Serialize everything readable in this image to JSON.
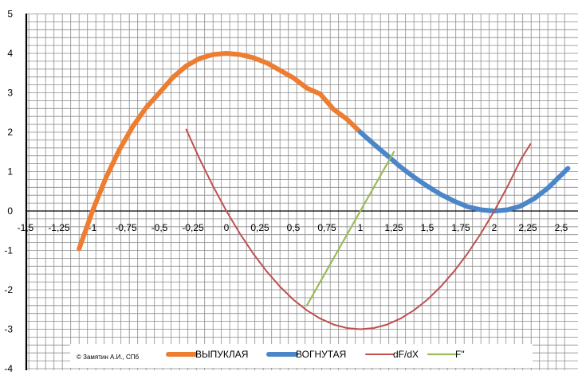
{
  "chart_data": {
    "type": "line",
    "title": "",
    "xlabel": "",
    "ylabel": "",
    "xlim": [
      -1.6,
      2.55
    ],
    "ylim": [
      -4,
      5
    ],
    "x_ticks": [
      {
        "value": -1.5,
        "label": "-1,5"
      },
      {
        "value": -1.25,
        "label": "-1,25"
      },
      {
        "value": -1,
        "label": "-1"
      },
      {
        "value": -0.75,
        "label": "-0,75"
      },
      {
        "value": -0.5,
        "label": "-0,5"
      },
      {
        "value": -0.25,
        "label": "-0,25"
      },
      {
        "value": 0,
        "label": "0"
      },
      {
        "value": 0.25,
        "label": "0,25"
      },
      {
        "value": 0.5,
        "label": "0,5"
      },
      {
        "value": 0.75,
        "label": "0,75"
      },
      {
        "value": 1,
        "label": "1"
      },
      {
        "value": 1.25,
        "label": "1,25"
      },
      {
        "value": 1.5,
        "label": "1,5"
      },
      {
        "value": 1.75,
        "label": "1,75"
      },
      {
        "value": 2,
        "label": "2"
      },
      {
        "value": 2.25,
        "label": "2,25"
      },
      {
        "value": 2.5,
        "label": "2,5"
      }
    ],
    "y_ticks": [
      {
        "value": 5,
        "label": "5"
      },
      {
        "value": 4,
        "label": "4"
      },
      {
        "value": 3,
        "label": "3"
      },
      {
        "value": 2,
        "label": "2"
      },
      {
        "value": 1,
        "label": "1"
      },
      {
        "value": 0,
        "label": "0"
      },
      {
        "value": -1,
        "label": "-1"
      },
      {
        "value": -2,
        "label": "-2"
      },
      {
        "value": -3,
        "label": "-3"
      },
      {
        "value": -4,
        "label": "-4"
      }
    ],
    "grid": true,
    "legend_position": "bottom",
    "series": [
      {
        "name": "ВЫПУКЛАЯ",
        "color": "#ED7D31",
        "x": [
          -1.1,
          -1.0,
          -0.9,
          -0.8,
          -0.7,
          -0.6,
          -0.5,
          -0.4,
          -0.3,
          -0.2,
          -0.1,
          0.0,
          0.1,
          0.2,
          0.3,
          0.4,
          0.5,
          0.6,
          0.7,
          0.8,
          0.9,
          1.0
        ],
        "y": [
          -0.96,
          0.0,
          0.84,
          1.55,
          2.14,
          2.62,
          3.0,
          3.39,
          3.68,
          3.87,
          3.97,
          4.0,
          3.97,
          3.89,
          3.76,
          3.57,
          3.38,
          3.12,
          2.97,
          2.58,
          2.33,
          2.0
        ]
      },
      {
        "name": "ВОГНУТАЯ",
        "color": "#4A86C8",
        "x": [
          1.0,
          1.1,
          1.2,
          1.3,
          1.4,
          1.5,
          1.6,
          1.7,
          1.8,
          1.9,
          2.0,
          2.1,
          2.2,
          2.3,
          2.4,
          2.55
        ],
        "y": [
          2.0,
          1.7,
          1.41,
          1.12,
          0.86,
          0.63,
          0.42,
          0.25,
          0.11,
          0.03,
          0.0,
          0.03,
          0.13,
          0.32,
          0.58,
          1.08
        ]
      },
      {
        "name": "dF/dX",
        "color": "#C0504D",
        "x": [
          -0.3,
          -0.2,
          -0.1,
          0.0,
          0.1,
          0.2,
          0.3,
          0.4,
          0.5,
          0.6,
          0.7,
          0.8,
          0.9,
          1.0,
          1.1,
          1.2,
          1.3,
          1.4,
          1.5,
          1.6,
          1.7,
          1.8,
          1.9,
          2.0,
          2.1,
          2.2,
          2.27
        ],
        "y": [
          2.07,
          1.32,
          0.63,
          0.0,
          -0.57,
          -1.08,
          -1.53,
          -1.92,
          -2.25,
          -2.52,
          -2.73,
          -2.88,
          -2.97,
          -3.0,
          -2.97,
          -2.88,
          -2.73,
          -2.52,
          -2.25,
          -1.92,
          -1.53,
          -1.08,
          -0.57,
          0.0,
          0.63,
          1.32,
          1.7
        ]
      },
      {
        "name": "F\"",
        "color": "#9BBB59",
        "x": [
          0.6,
          1.25
        ],
        "y": [
          -2.4,
          1.5
        ]
      }
    ]
  },
  "copyright": "© Замятин А.И., СПб"
}
